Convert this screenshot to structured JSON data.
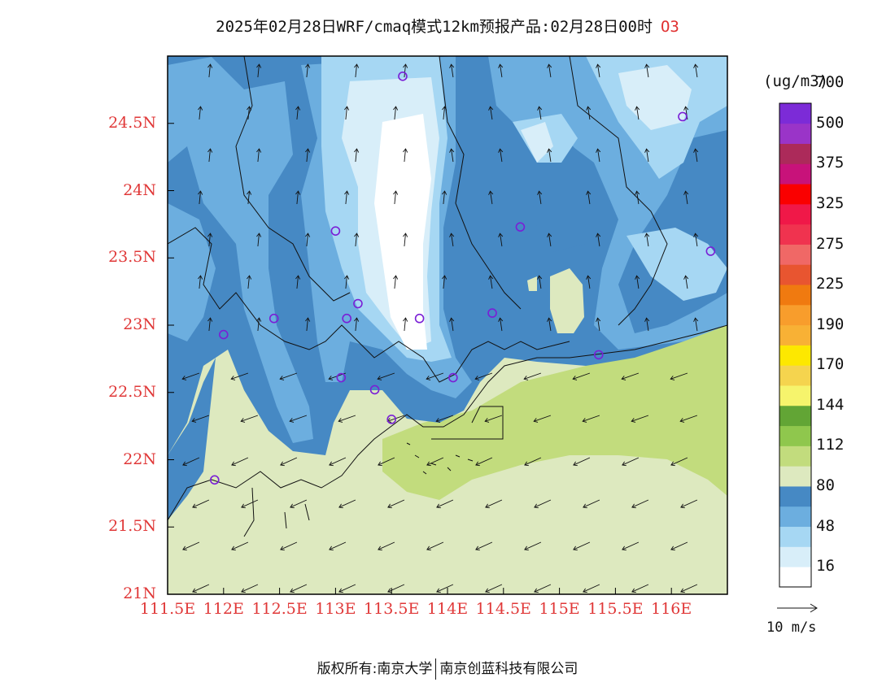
{
  "title": {
    "main": "2025年02月28日WRF/cmaq模式12km预报产品:02月28日00时",
    "species": "O3"
  },
  "axes": {
    "lat_labels": [
      "24.5N",
      "24N",
      "23.5N",
      "23N",
      "22.5N",
      "22N",
      "21.5N",
      "21N"
    ],
    "lat_values": [
      24.5,
      24.0,
      23.5,
      23.0,
      22.5,
      22.0,
      21.5,
      21.0
    ],
    "lon_labels": [
      "111.5E",
      "112E",
      "112.5E",
      "113E",
      "113.5E",
      "114E",
      "114.5E",
      "115E",
      "115.5E",
      "116E"
    ],
    "lon_values": [
      111.5,
      112.0,
      112.5,
      113.0,
      113.5,
      114.0,
      114.5,
      115.0,
      115.5,
      116.0
    ],
    "lon_range": [
      111.5,
      116.5
    ],
    "lat_range": [
      21.0,
      25.0
    ]
  },
  "colorbar": {
    "unit": "(ug/m3)",
    "labels": [
      "700",
      "500",
      "375",
      "325",
      "275",
      "225",
      "190",
      "170",
      "144",
      "112",
      "80",
      "48",
      "16"
    ],
    "colors": [
      "#ffffff",
      "#d8eef9",
      "#a6d7f3",
      "#6caedf",
      "#4689c4",
      "#dde9bf",
      "#c2dc7d",
      "#8fc74d",
      "#62a535",
      "#f6f46c",
      "#f5d44e",
      "#fde800",
      "#f8b135",
      "#f89d2c",
      "#f07a10",
      "#e85530",
      "#f06866",
      "#f0334f",
      "#f01848",
      "#fa0000",
      "#c8127a",
      "#ac2a5a",
      "#9a34c8",
      "#7c2bd7"
    ]
  },
  "wind": {
    "reference_label": "10 m/s"
  },
  "stations": [
    {
      "lon": 113.6,
      "lat": 24.85
    },
    {
      "lon": 116.1,
      "lat": 24.55
    },
    {
      "lon": 113.0,
      "lat": 23.7
    },
    {
      "lon": 114.65,
      "lat": 23.73
    },
    {
      "lon": 116.35,
      "lat": 23.55
    },
    {
      "lon": 113.2,
      "lat": 23.16
    },
    {
      "lon": 112.45,
      "lat": 23.05
    },
    {
      "lon": 113.1,
      "lat": 23.05
    },
    {
      "lon": 113.75,
      "lat": 23.05
    },
    {
      "lon": 114.4,
      "lat": 23.09
    },
    {
      "lon": 112.0,
      "lat": 22.93
    },
    {
      "lon": 115.35,
      "lat": 22.78
    },
    {
      "lon": 113.05,
      "lat": 22.61
    },
    {
      "lon": 114.05,
      "lat": 22.61
    },
    {
      "lon": 113.35,
      "lat": 22.52
    },
    {
      "lon": 113.5,
      "lat": 22.3
    },
    {
      "lon": 111.92,
      "lat": 21.85
    }
  ],
  "footer": {
    "left": "版权所有:南京大学",
    "right": "南京创蓝科技有限公司"
  }
}
